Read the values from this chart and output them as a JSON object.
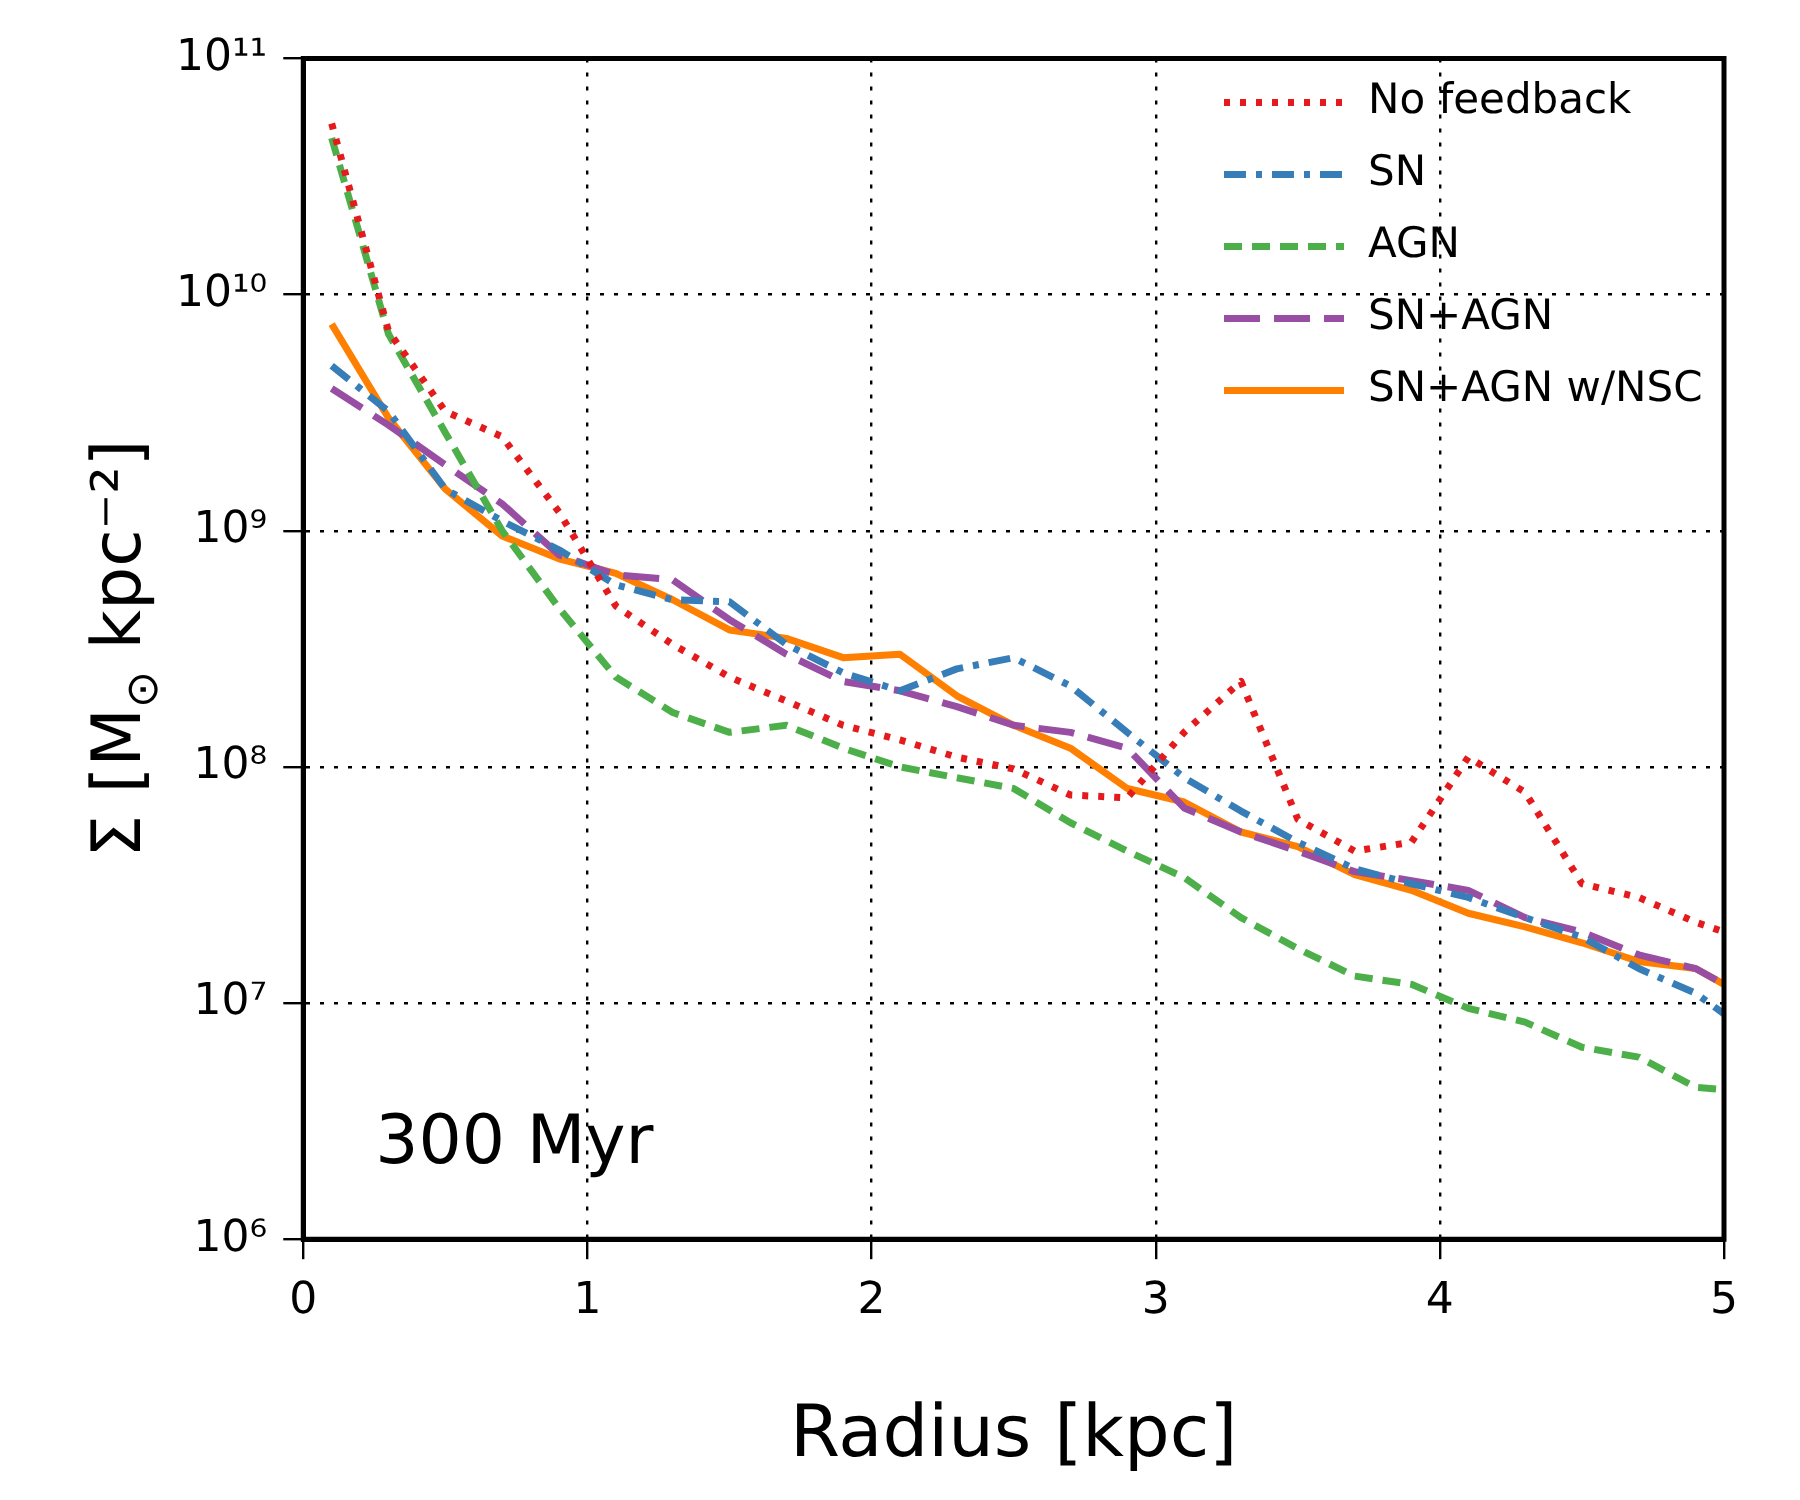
{
  "chart_data": {
    "type": "line",
    "xlabel": "Radius [kpc]",
    "ylabel": "Σ [M$_{⊙}$ kpc⁻²]",
    "log": "y",
    "grid": true,
    "legend": "top right",
    "xlim": [
      0,
      5
    ],
    "xticks": [
      0,
      1,
      2,
      3,
      4,
      5
    ],
    "ylim": [
      1000000,
      100000000000
    ],
    "yticks": [
      {
        "value": 1000000,
        "label": "10⁶"
      },
      {
        "value": 10000000,
        "label": "10⁷"
      },
      {
        "value": 100000000,
        "label": "10⁸"
      },
      {
        "value": 1000000000,
        "label": "10⁹"
      },
      {
        "value": 10000000000,
        "label": "10¹⁰"
      },
      {
        "value": 100000000000,
        "label": "10¹¹"
      }
    ],
    "annotations": [
      "300 Myr"
    ],
    "x": [
      0.1,
      0.3,
      0.5,
      0.7,
      0.9,
      1.1,
      1.3,
      1.5,
      1.7,
      1.9,
      2.1,
      2.3,
      2.5,
      2.7,
      2.9,
      3.1,
      3.3,
      3.5,
      3.7,
      3.9,
      4.1,
      4.3,
      4.5,
      4.7,
      4.9,
      5.0
    ],
    "series": [
      {
        "name": "No feedback",
        "color": "#e41a1c",
        "line_style": "dotted",
        "values": [
          53000000000.0,
          7000000000.0,
          3200000000.0,
          2500000000.0,
          1200000000.0,
          480000000.0,
          330000000.0,
          240000000.0,
          190000000.0,
          150000000.0,
          130000000.0,
          110000000.0,
          98000000.0,
          76000000.0,
          74000000.0,
          140000000.0,
          230000000.0,
          60000000.0,
          44000000.0,
          48000000.0,
          110000000.0,
          78000000.0,
          32000000.0,
          28000000.0,
          22000000.0,
          20000000.0
        ]
      },
      {
        "name": "SN",
        "color": "#377eb8",
        "line_style": "dashdot",
        "values": [
          5000000000.0,
          3200000000.0,
          1500000000.0,
          1100000000.0,
          830000000.0,
          590000000.0,
          510000000.0,
          500000000.0,
          330000000.0,
          250000000.0,
          210000000.0,
          260000000.0,
          290000000.0,
          220000000.0,
          140000000.0,
          90000000.0,
          65000000.0,
          48000000.0,
          37000000.0,
          32000000.0,
          28000000.0,
          23000000.0,
          19000000.0,
          14000000.0,
          11000000.0,
          9000000.0
        ]
      },
      {
        "name": "AGN",
        "color": "#4daf4a",
        "line_style": "dashed",
        "values": [
          46000000000.0,
          6800000000.0,
          2600000000.0,
          1000000000.0,
          470000000.0,
          240000000.0,
          170000000.0,
          140000000.0,
          150000000.0,
          120000000.0,
          100000000.0,
          90000000.0,
          81000000.0,
          58000000.0,
          44000000.0,
          34000000.0,
          23000000.0,
          17000000.0,
          13000000.0,
          12000000.0,
          9500000.0,
          8300000.0,
          6500000.0,
          5900000.0,
          4400000.0,
          4300000.0
        ]
      },
      {
        "name": "SN+AGN",
        "color": "#984ea3",
        "line_style": "longdashed",
        "values": [
          4000000000.0,
          2800000000.0,
          1900000000.0,
          1300000000.0,
          790000000.0,
          650000000.0,
          620000000.0,
          420000000.0,
          300000000.0,
          230000000.0,
          210000000.0,
          180000000.0,
          150000000.0,
          140000000.0,
          120000000.0,
          67000000.0,
          53000000.0,
          44000000.0,
          36000000.0,
          33000000.0,
          30000000.0,
          23000000.0,
          20000000.0,
          16000000.0,
          14000000.0,
          12000000.0
        ]
      },
      {
        "name": "SN+AGN w/NSC",
        "color": "#ff7f00",
        "line_style": "solid",
        "values": [
          7500000000.0,
          3000000000.0,
          1500000000.0,
          950000000.0,
          760000000.0,
          660000000.0,
          510000000.0,
          380000000.0,
          350000000.0,
          290000000.0,
          300000000.0,
          200000000.0,
          150000000.0,
          120000000.0,
          81000000.0,
          71000000.0,
          53000000.0,
          46000000.0,
          35000000.0,
          30000000.0,
          24000000.0,
          21000000.0,
          18000000.0,
          15000000.0,
          14000000.0,
          12000000.0
        ]
      }
    ]
  }
}
